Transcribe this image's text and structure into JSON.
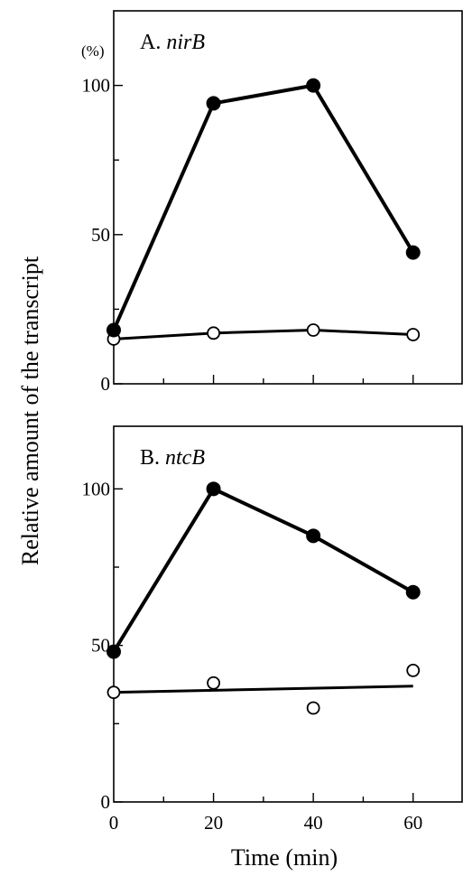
{
  "chart_data": [
    {
      "type": "line",
      "panel_letter": "A.",
      "gene": "nirB",
      "unit_label": "(%)",
      "x": [
        0,
        20,
        40,
        60
      ],
      "ylim": [
        0,
        125
      ],
      "y_ticks": [
        0,
        50,
        100
      ],
      "series": [
        {
          "marker": "filled",
          "values": [
            18,
            94,
            100,
            44
          ]
        },
        {
          "marker": "open",
          "values": [
            15,
            17,
            18,
            16.5
          ]
        }
      ],
      "open_fit": {
        "x": [
          0,
          20,
          40,
          60
        ],
        "y": [
          15,
          17,
          18,
          16.5
        ]
      }
    },
    {
      "type": "line",
      "panel_letter": "B.",
      "gene": "ntcB",
      "unit_label": "",
      "x": [
        0,
        20,
        40,
        60
      ],
      "ylim": [
        0,
        120
      ],
      "y_ticks": [
        0,
        50,
        100
      ],
      "series": [
        {
          "marker": "filled",
          "values": [
            48,
            100,
            85,
            67
          ]
        },
        {
          "marker": "open",
          "values": [
            35,
            38,
            30,
            42
          ]
        }
      ],
      "open_fit": {
        "x": [
          0,
          60
        ],
        "y": [
          35,
          37
        ]
      }
    }
  ],
  "xlabel": "Time (min)",
  "ylabel": "Relative amount of the transcript",
  "x_tick_labels": [
    "0",
    "20",
    "40",
    "60"
  ],
  "colors": {
    "line": "#000000",
    "open_fill": "#ffffff"
  }
}
